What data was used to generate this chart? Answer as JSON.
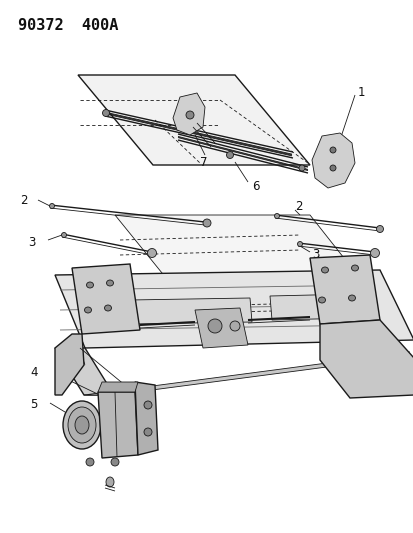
{
  "title": "90372  400A",
  "bg_color": "#ffffff",
  "line_color": "#1a1a1a",
  "label_color": "#111111",
  "label_fontsize": 8.5,
  "title_fontsize": 11
}
